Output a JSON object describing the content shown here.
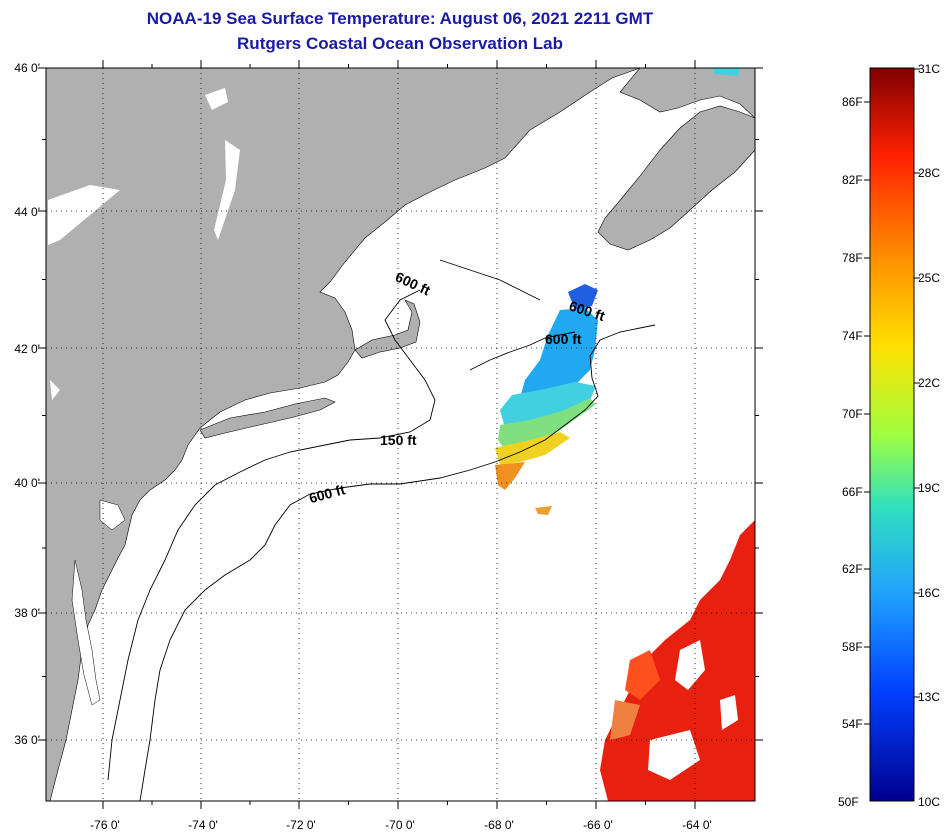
{
  "title": {
    "line1": "NOAA-19 Sea Surface Temperature:  August 06, 2021 2211 GMT",
    "line2": "Rutgers Coastal Ocean Observation Lab"
  },
  "map": {
    "lat_labels": [
      "46 0'",
      "44 0'",
      "42 0'",
      "40 0'",
      "38 0'",
      "36 0'"
    ],
    "lon_labels": [
      "-76 0'",
      "-74 0'",
      "-72 0'",
      "-70 0'",
      "-68 0'",
      "-66 0'",
      "-64 0'"
    ],
    "contour_labels": [
      "600 ft",
      "600 ft",
      "600 ft",
      "150 ft",
      "600 ft"
    ],
    "land_color": "#b0b0b0",
    "ocean_color": "#ffffff"
  },
  "colorbar": {
    "f_labels": [
      "86F",
      "82F",
      "78F",
      "74F",
      "70F",
      "66F",
      "62F",
      "58F",
      "54F",
      "50F"
    ],
    "c_labels": [
      "31C",
      "28C",
      "25C",
      "22C",
      "19C",
      "16C",
      "13C",
      "10C"
    ],
    "colors": [
      "#7f0000",
      "#ff2000",
      "#ff9000",
      "#ffe000",
      "#a0ff40",
      "#30e0c0",
      "#20a0ff",
      "#0040ff",
      "#00008f"
    ]
  }
}
